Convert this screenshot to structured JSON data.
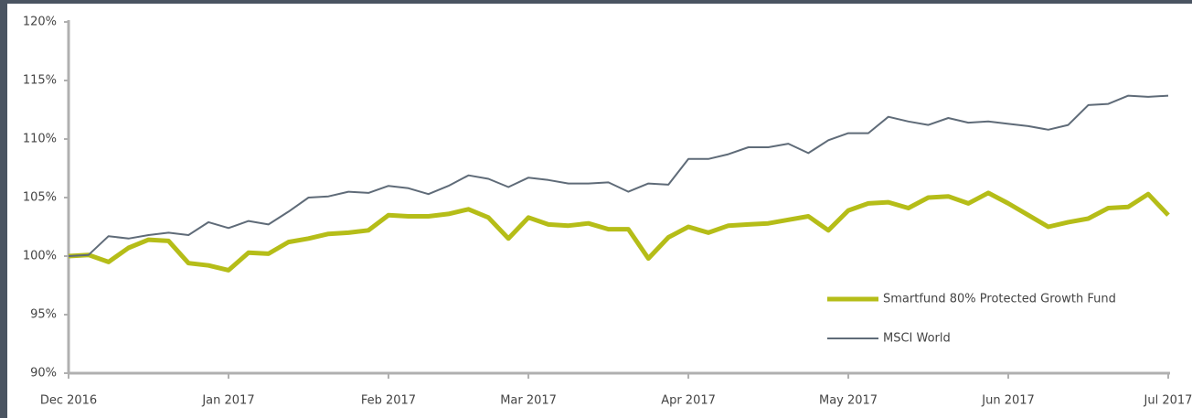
{
  "chart_data": {
    "type": "line",
    "categories": [
      "Dec 2016",
      null,
      null,
      null,
      null,
      null,
      null,
      null,
      "Jan 2017",
      null,
      null,
      null,
      null,
      null,
      null,
      null,
      "Feb 2017",
      null,
      null,
      null,
      null,
      null,
      null,
      "Mar 2017",
      null,
      null,
      null,
      null,
      null,
      null,
      null,
      "Apr 2017",
      null,
      null,
      null,
      null,
      null,
      null,
      null,
      "May 2017",
      null,
      null,
      null,
      null,
      null,
      null,
      null,
      "Jun 2017",
      null,
      null,
      null,
      null,
      null,
      null,
      null,
      "Jul 2017"
    ],
    "series": [
      {
        "name": "Smartfund 80% Protected Growth Fund",
        "color": "#b5bd18",
        "line_width": 5,
        "values": [
          100.0,
          100.1,
          99.5,
          100.7,
          101.4,
          101.3,
          99.4,
          99.2,
          98.8,
          100.3,
          100.2,
          101.2,
          101.5,
          101.9,
          102.0,
          102.2,
          103.5,
          103.4,
          103.4,
          103.6,
          104.0,
          103.3,
          101.5,
          103.3,
          102.7,
          102.6,
          102.8,
          102.3,
          102.3,
          99.8,
          101.6,
          102.5,
          102.0,
          102.6,
          102.7,
          102.8,
          103.1,
          103.4,
          102.2,
          103.9,
          104.5,
          104.6,
          104.1,
          105.0,
          105.1,
          104.5,
          105.4,
          104.5,
          103.5,
          102.5,
          102.9,
          103.2,
          104.1,
          104.2,
          105.3,
          103.5
        ]
      },
      {
        "name": "MSCI World",
        "color": "#5f6b78",
        "line_width": 2,
        "values": [
          100.0,
          100.1,
          101.7,
          101.5,
          101.8,
          102.0,
          101.8,
          102.9,
          102.4,
          103.0,
          102.7,
          103.8,
          105.0,
          105.1,
          105.5,
          105.4,
          106.0,
          105.8,
          105.3,
          106.0,
          106.9,
          106.6,
          105.9,
          106.7,
          106.5,
          106.2,
          106.2,
          106.3,
          105.5,
          106.2,
          106.1,
          108.3,
          108.3,
          108.7,
          109.3,
          109.3,
          109.6,
          108.8,
          109.9,
          110.5,
          110.5,
          111.9,
          111.5,
          111.2,
          111.8,
          111.4,
          111.5,
          111.3,
          111.1,
          110.8,
          111.2,
          112.9,
          113.0,
          113.7,
          113.6,
          113.7
        ]
      }
    ],
    "ylim": [
      90,
      120
    ],
    "yticks": [
      {
        "value": 90,
        "label": "90%"
      },
      {
        "value": 95,
        "label": "95%"
      },
      {
        "value": 100,
        "label": "100%"
      },
      {
        "value": 105,
        "label": "105%"
      },
      {
        "value": 110,
        "label": "110%"
      },
      {
        "value": 115,
        "label": "115%"
      },
      {
        "value": 120,
        "label": "120%"
      }
    ],
    "grid": false,
    "legend": "lower right"
  }
}
